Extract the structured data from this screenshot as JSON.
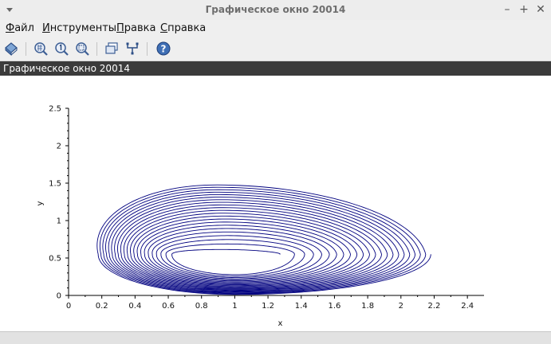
{
  "window": {
    "title": "Графическое окно 20014"
  },
  "menu": {
    "items": [
      {
        "mnemonic": "Ф",
        "rest": "айл"
      },
      {
        "mnemonic": "И",
        "rest": "нструменты"
      },
      {
        "mnemonic": "П",
        "rest": "равка"
      },
      {
        "mnemonic": "С",
        "rest": "правка"
      }
    ]
  },
  "toolbar": {
    "icons": [
      "rotate-icon",
      "zoom-grid-icon",
      "zoom-original-icon",
      "zoom-area-icon",
      "window-icon",
      "data-tip-icon",
      "help-icon"
    ]
  },
  "info_bar": {
    "text": "Графическое окно 20014"
  },
  "colors": {
    "curve": "#00007f",
    "info_bar_bg": "#3b3b3b"
  },
  "chart_data": {
    "type": "line",
    "xlabel": "x",
    "ylabel": "y",
    "xlim": [
      0,
      2.5
    ],
    "ylim": [
      0,
      2.5
    ],
    "xticks": [
      "0",
      "0.2",
      "0.4",
      "0.6",
      "0.8",
      "1",
      "1.2",
      "1.4",
      "1.6",
      "1.8",
      "2",
      "2.2",
      "2.4"
    ],
    "yticks": [
      "0",
      "0.5",
      "1",
      "1.5",
      "2",
      "2.5"
    ],
    "grid": false,
    "series": [
      {
        "description_of_shape": "outward spiral trajectory around (1, 0.5)",
        "center": [
          1.0,
          0.55
        ],
        "outer_extent": {
          "x": [
            0.17,
            2.18
          ],
          "y": [
            0.01,
            1.5
          ]
        },
        "inner_extent": {
          "x": [
            0.65,
            1.27
          ],
          "y": [
            0.3,
            0.58
          ]
        }
      }
    ]
  }
}
